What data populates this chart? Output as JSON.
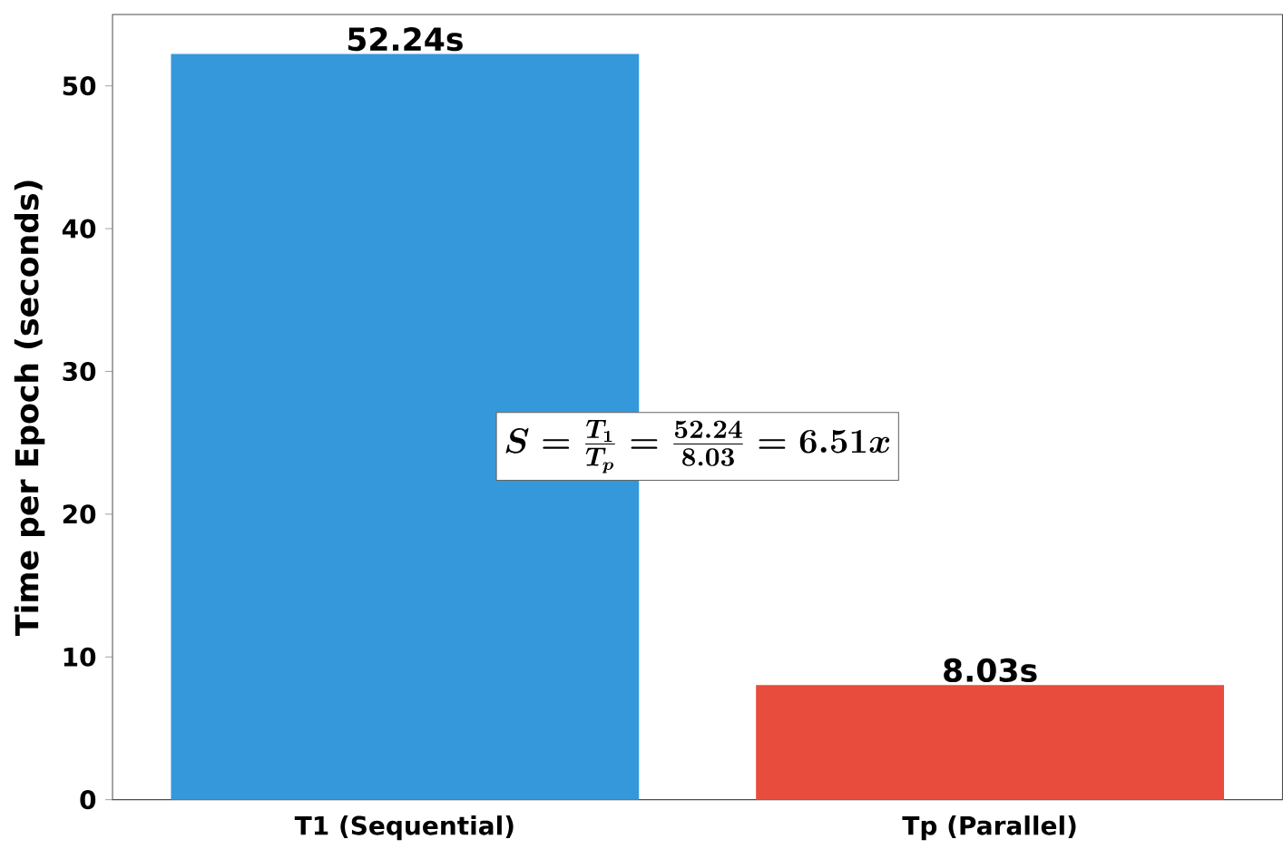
{
  "chart_data": {
    "type": "bar",
    "categories": [
      "T1 (Sequential)",
      "Tp (Parallel)"
    ],
    "values": [
      52.24,
      8.03
    ],
    "colors": [
      "#3498db",
      "#e74c3c"
    ],
    "value_labels": [
      "52.24s",
      "8.03s"
    ],
    "ylabel": "Time per Epoch (seconds)",
    "ylim": [
      0,
      55
    ],
    "yticks": [
      0,
      10,
      20,
      30,
      40,
      50
    ],
    "annotations": [
      "S = \\frac{T_1}{T_p} = \\frac{52.24}{8.03} = 6.51x"
    ]
  }
}
